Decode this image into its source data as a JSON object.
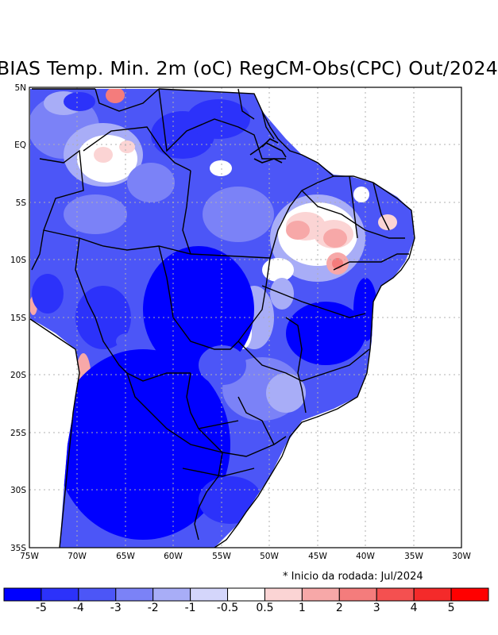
{
  "title": "BIAS Temp. Min. 2m (oC) RegCM-Obs(CPC) Out/2024",
  "note": "* Inicio da rodada: Jul/2024",
  "lon_ticks": [
    "75W",
    "70W",
    "65W",
    "60W",
    "55W",
    "50W",
    "45W",
    "40W",
    "35W",
    "30W"
  ],
  "lat_ticks": [
    "5N",
    "EQ",
    "5S",
    "10S",
    "15S",
    "20S",
    "25S",
    "30S",
    "35S"
  ],
  "colorbar": {
    "colors": [
      "#0000ff",
      "#2c32fa",
      "#4c56f7",
      "#7b82f7",
      "#a8adf7",
      "#d4d6fb",
      "#ffffff",
      "#fbd4d4",
      "#f7a8a8",
      "#f47c7c",
      "#f45050",
      "#f42a2a",
      "#ff0000"
    ],
    "labels": [
      "-5",
      "-4",
      "-3",
      "-2",
      "-1",
      "-0.5",
      "0.5",
      "1",
      "2",
      "3",
      "4",
      "5"
    ]
  },
  "palette": {
    "deep_blue": "#0000ff",
    "blue2": "#2c32fa",
    "blue3": "#4c56f7",
    "blue4": "#7b82f7",
    "light_blue": "#a8adf7",
    "pale_blue": "#d4d6fb",
    "white": "#ffffff",
    "pink": "#fbd4d4",
    "light_red": "#f7a8a8",
    "red": "#f47c7c"
  }
}
